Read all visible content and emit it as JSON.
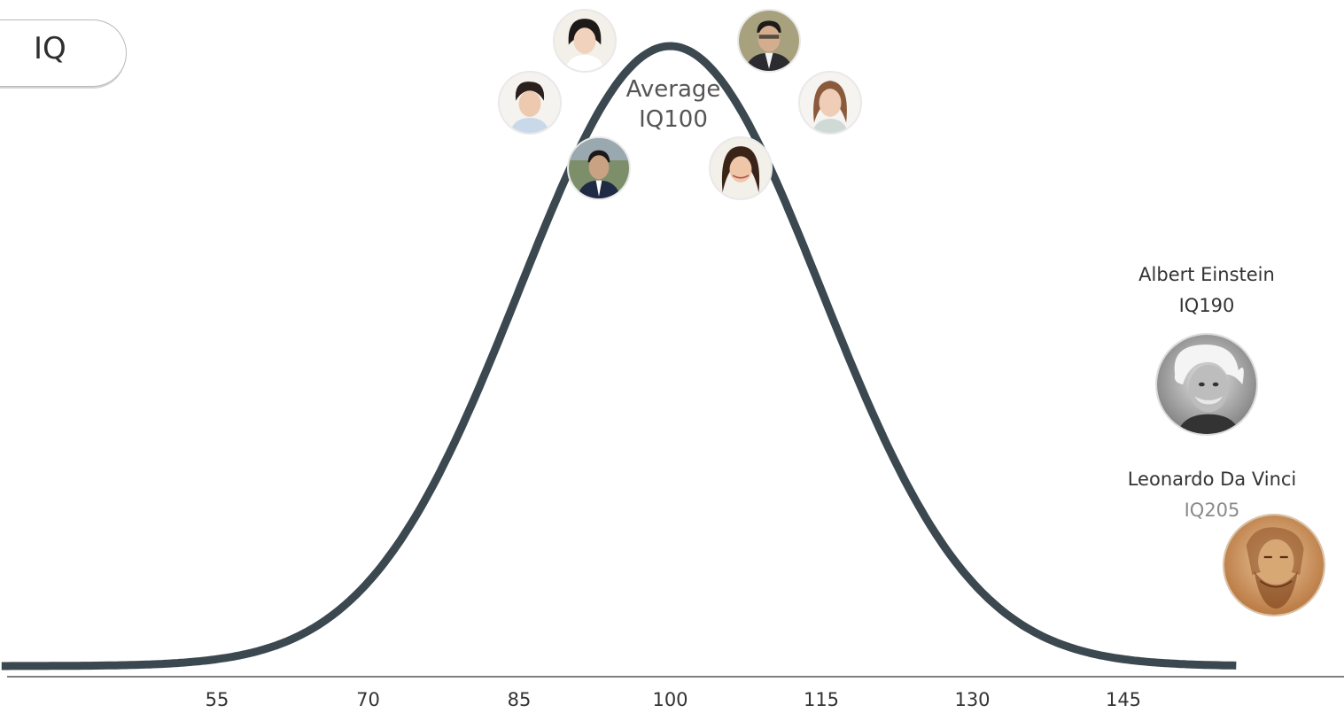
{
  "title_tab": {
    "label": "IQ"
  },
  "average": {
    "line1": "Average",
    "line2": "IQ100"
  },
  "famous": [
    {
      "name": "Albert Einstein",
      "iq": "IQ190",
      "iq_color": "#333333"
    },
    {
      "name": "Leonardo Da Vinci",
      "iq": "IQ205",
      "iq_color": "#8a8a8a"
    }
  ],
  "colors": {
    "curve": "#3b4850",
    "axis": "#555555",
    "tick_text": "#333333"
  },
  "chart_data": {
    "type": "line",
    "title": "IQ",
    "xlabel": "",
    "ylabel": "",
    "x_ticks": [
      55,
      70,
      85,
      100,
      115,
      130,
      145
    ],
    "xlim": [
      31,
      160
    ],
    "distribution": {
      "kind": "normal",
      "mean": 100,
      "sd": 15
    },
    "grid": false,
    "annotations": [
      "Average IQ100",
      "Albert Einstein IQ190",
      "Leonardo Da Vinci IQ205"
    ]
  }
}
